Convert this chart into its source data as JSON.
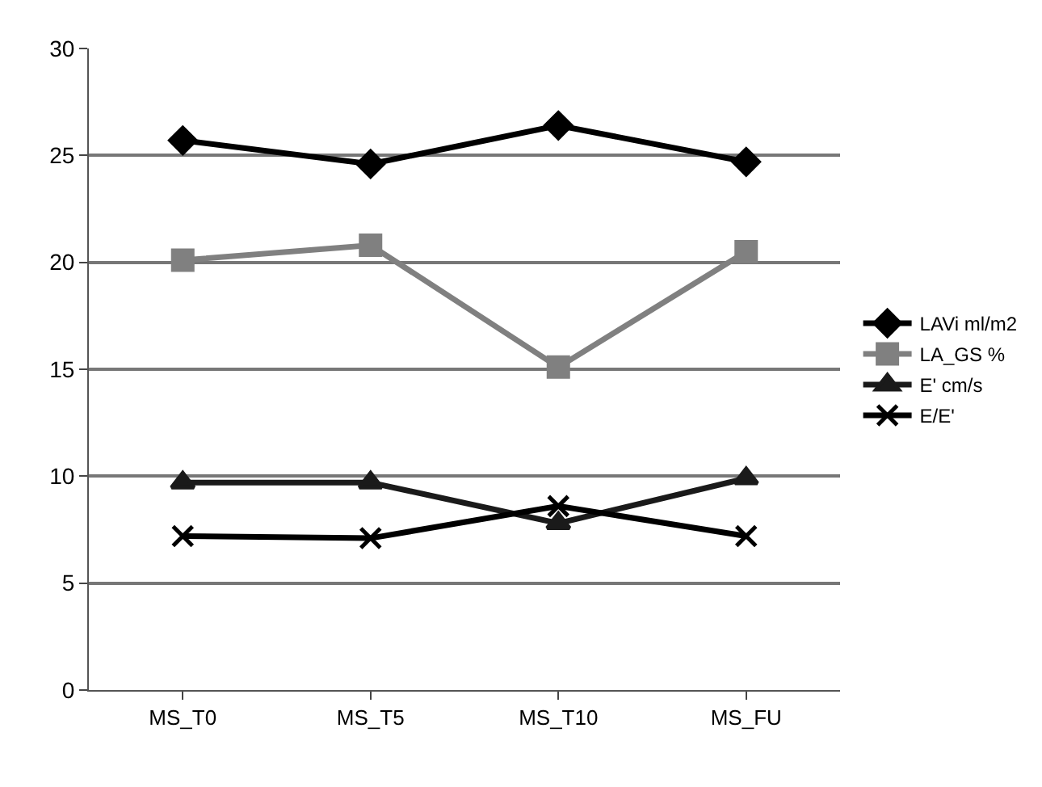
{
  "chart_data": {
    "type": "line",
    "categories": [
      "MS_T0",
      "MS_T5",
      "MS_T10",
      "MS_FU"
    ],
    "series": [
      {
        "name": "LAVi ml/m2",
        "color": "#000000",
        "marker": "diamond",
        "values": [
          25.7,
          24.6,
          26.4,
          24.7
        ]
      },
      {
        "name": "LA_GS %",
        "color": "#808080",
        "marker": "square",
        "values": [
          20.1,
          20.8,
          15.1,
          20.5
        ]
      },
      {
        "name": "E' cm/s",
        "color": "#1a1a1a",
        "marker": "triangle",
        "values": [
          9.7,
          9.7,
          7.8,
          9.9
        ]
      },
      {
        "name": "E/E'",
        "color": "#000000",
        "marker": "cross",
        "values": [
          7.2,
          7.1,
          8.6,
          7.2
        ]
      }
    ],
    "ylim": [
      0,
      30
    ],
    "yticks": [
      0,
      5,
      10,
      15,
      20,
      25,
      30
    ],
    "grid": "y",
    "legend": "right",
    "line_style": "solid"
  }
}
